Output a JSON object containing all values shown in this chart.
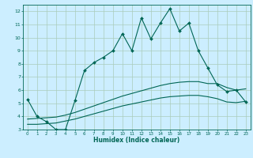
{
  "xlabel": "Humidex (Indice chaleur)",
  "bg_color": "#cceeff",
  "grid_color": "#aaccbb",
  "line_color": "#006655",
  "xlim": [
    -0.5,
    23.5
  ],
  "ylim": [
    3,
    12.5
  ],
  "xticks": [
    0,
    1,
    2,
    3,
    4,
    5,
    6,
    7,
    8,
    9,
    10,
    11,
    12,
    13,
    14,
    15,
    16,
    17,
    18,
    19,
    20,
    21,
    22,
    23
  ],
  "yticks": [
    3,
    4,
    5,
    6,
    7,
    8,
    9,
    10,
    11,
    12
  ],
  "series": [
    {
      "x": [
        0,
        1,
        2,
        3,
        4,
        5,
        6,
        7,
        8,
        9,
        10,
        11,
        12,
        13,
        14,
        15,
        16,
        17,
        18,
        19,
        20,
        21,
        22,
        23
      ],
      "y": [
        5.3,
        4.0,
        3.6,
        3.0,
        3.0,
        5.2,
        7.5,
        8.1,
        8.5,
        9.0,
        10.3,
        9.0,
        11.5,
        9.9,
        11.1,
        12.2,
        10.5,
        11.1,
        9.0,
        7.7,
        6.4,
        5.9,
        6.0,
        5.1
      ],
      "marker": "D",
      "linewidth": 0.8,
      "markersize": 2.0
    },
    {
      "x": [
        0,
        1,
        2,
        3,
        4,
        5,
        6,
        7,
        8,
        9,
        10,
        11,
        12,
        13,
        14,
        15,
        16,
        17,
        18,
        19,
        20,
        21,
        22,
        23
      ],
      "y": [
        3.8,
        3.85,
        3.9,
        3.95,
        4.1,
        4.3,
        4.55,
        4.8,
        5.05,
        5.3,
        5.55,
        5.75,
        5.95,
        6.15,
        6.35,
        6.5,
        6.6,
        6.65,
        6.65,
        6.5,
        6.5,
        6.2,
        6.0,
        6.1
      ],
      "marker": null,
      "linewidth": 0.8,
      "markersize": 0
    },
    {
      "x": [
        0,
        1,
        2,
        3,
        4,
        5,
        6,
        7,
        8,
        9,
        10,
        11,
        12,
        13,
        14,
        15,
        16,
        17,
        18,
        19,
        20,
        21,
        22,
        23
      ],
      "y": [
        3.4,
        3.4,
        3.45,
        3.5,
        3.65,
        3.8,
        4.0,
        4.2,
        4.4,
        4.6,
        4.8,
        4.95,
        5.1,
        5.25,
        5.4,
        5.5,
        5.55,
        5.6,
        5.6,
        5.5,
        5.35,
        5.1,
        5.05,
        5.15
      ],
      "marker": null,
      "linewidth": 0.8,
      "markersize": 0
    }
  ]
}
